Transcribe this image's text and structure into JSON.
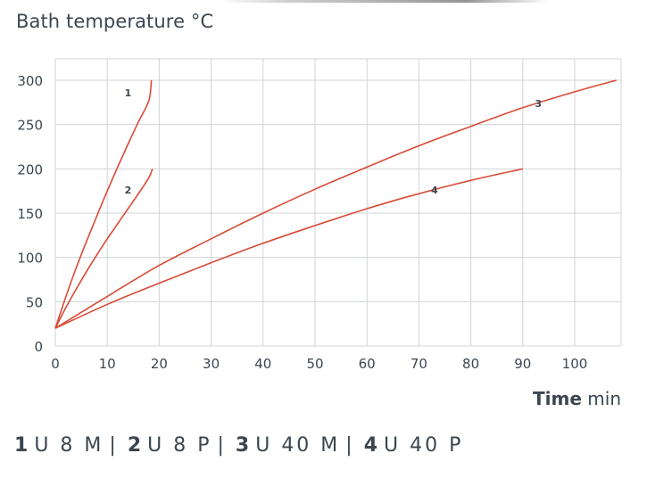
{
  "chart_data": {
    "type": "line",
    "title": "",
    "ylabel": "Bath temperature °C",
    "xlabel_bold": "Time",
    "xlabel_unit": "min",
    "xlim": [
      0,
      108
    ],
    "ylim": [
      0,
      320
    ],
    "x_ticks": [
      0,
      10,
      20,
      30,
      40,
      50,
      60,
      70,
      80,
      90,
      100
    ],
    "y_ticks": [
      0,
      50,
      100,
      150,
      200,
      250,
      300
    ],
    "grid": true,
    "series_color": "#d84b37",
    "series": [
      {
        "label": "1",
        "points": [
          [
            0,
            20
          ],
          [
            2,
            55
          ],
          [
            4,
            88
          ],
          [
            6,
            118
          ],
          [
            8,
            147
          ],
          [
            10,
            175
          ],
          [
            12,
            202
          ],
          [
            14,
            228
          ],
          [
            16,
            253
          ],
          [
            18,
            277
          ],
          [
            18.5,
            300
          ]
        ],
        "label_at": [
          14,
          282
        ]
      },
      {
        "label": "2",
        "points": [
          [
            0,
            20
          ],
          [
            2,
            43
          ],
          [
            4,
            64
          ],
          [
            6,
            84
          ],
          [
            8,
            103
          ],
          [
            10,
            121
          ],
          [
            12,
            138
          ],
          [
            14,
            155
          ],
          [
            16,
            172
          ],
          [
            18,
            190
          ],
          [
            18.7,
            200
          ]
        ],
        "label_at": [
          14,
          172
        ]
      },
      {
        "label": "3",
        "points": [
          [
            0,
            20
          ],
          [
            10,
            56
          ],
          [
            20,
            91
          ],
          [
            30,
            121
          ],
          [
            40,
            150
          ],
          [
            50,
            177
          ],
          [
            60,
            202
          ],
          [
            70,
            226
          ],
          [
            80,
            248
          ],
          [
            90,
            269
          ],
          [
            100,
            287
          ],
          [
            108,
            300
          ]
        ],
        "label_at": [
          93,
          270
        ]
      },
      {
        "label": "4",
        "points": [
          [
            0,
            20
          ],
          [
            10,
            47
          ],
          [
            20,
            71
          ],
          [
            30,
            94
          ],
          [
            40,
            116
          ],
          [
            50,
            136
          ],
          [
            60,
            155
          ],
          [
            70,
            172
          ],
          [
            80,
            187
          ],
          [
            90,
            200
          ]
        ],
        "label_at": [
          73,
          172
        ]
      }
    ]
  },
  "legend": {
    "items": [
      {
        "num": "1",
        "code": "U 8 M",
        "sep": "|"
      },
      {
        "num": "2",
        "code": "U 8 P",
        "sep": "|"
      },
      {
        "num": "3",
        "code": "U 40 M",
        "sep": "|"
      },
      {
        "num": "4",
        "code": "U 40 P",
        "sep": ""
      }
    ]
  }
}
